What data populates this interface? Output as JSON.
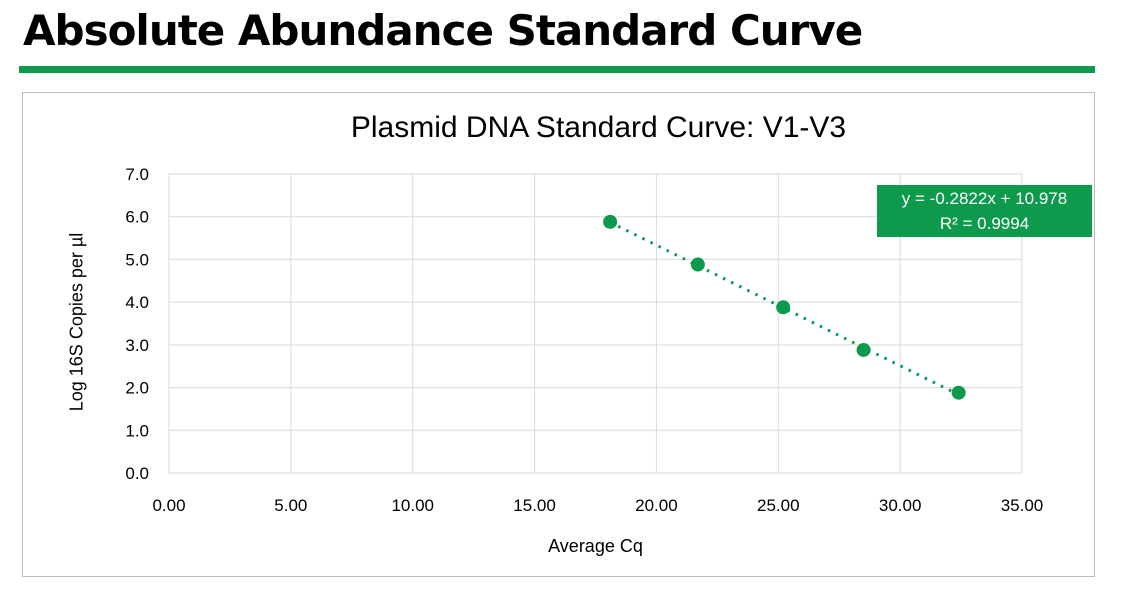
{
  "page": {
    "title": "Absolute Abundance Standard Curve",
    "accent_color": "#0E9A4C"
  },
  "chart_data": {
    "type": "scatter",
    "title": "Plasmid DNA Standard Curve: V1-V3",
    "xlabel": "Average Cq",
    "ylabel": "Log 16S Copies per µl",
    "xlim": [
      0,
      35
    ],
    "ylim": [
      0,
      7
    ],
    "grid": true,
    "legend_position": "none",
    "xticks": {
      "values": [
        0,
        5,
        10,
        15,
        20,
        25,
        30,
        35
      ],
      "labels": [
        "0.00",
        "5.00",
        "10.00",
        "15.00",
        "20.00",
        "25.00",
        "30.00",
        "35.00"
      ]
    },
    "yticks": {
      "values": [
        0,
        1,
        2,
        3,
        4,
        5,
        6,
        7
      ],
      "labels": [
        "0.0",
        "1.0",
        "2.0",
        "3.0",
        "4.0",
        "5.0",
        "6.0",
        "7.0"
      ]
    },
    "points": [
      {
        "x": 18.1,
        "y": 5.88
      },
      {
        "x": 21.7,
        "y": 4.88
      },
      {
        "x": 25.2,
        "y": 3.88
      },
      {
        "x": 28.5,
        "y": 2.88
      },
      {
        "x": 32.4,
        "y": 1.88
      }
    ],
    "trendline": {
      "slope": -0.2822,
      "intercept": 10.978,
      "style": "dotted",
      "equation_label": "y = -0.2822x + 10.978",
      "r2_label": "R² = 0.9994"
    },
    "colors": {
      "accent": "#0E9A4C",
      "marker": "#0E9A4C",
      "trendline": "#0E9A4C",
      "gridline": "#D9D9D9",
      "chart_border": "#BDBDBD",
      "equation_bg": "#0E9A4C",
      "equation_text": "#FFFFFF",
      "axis_text": "#000000"
    }
  }
}
